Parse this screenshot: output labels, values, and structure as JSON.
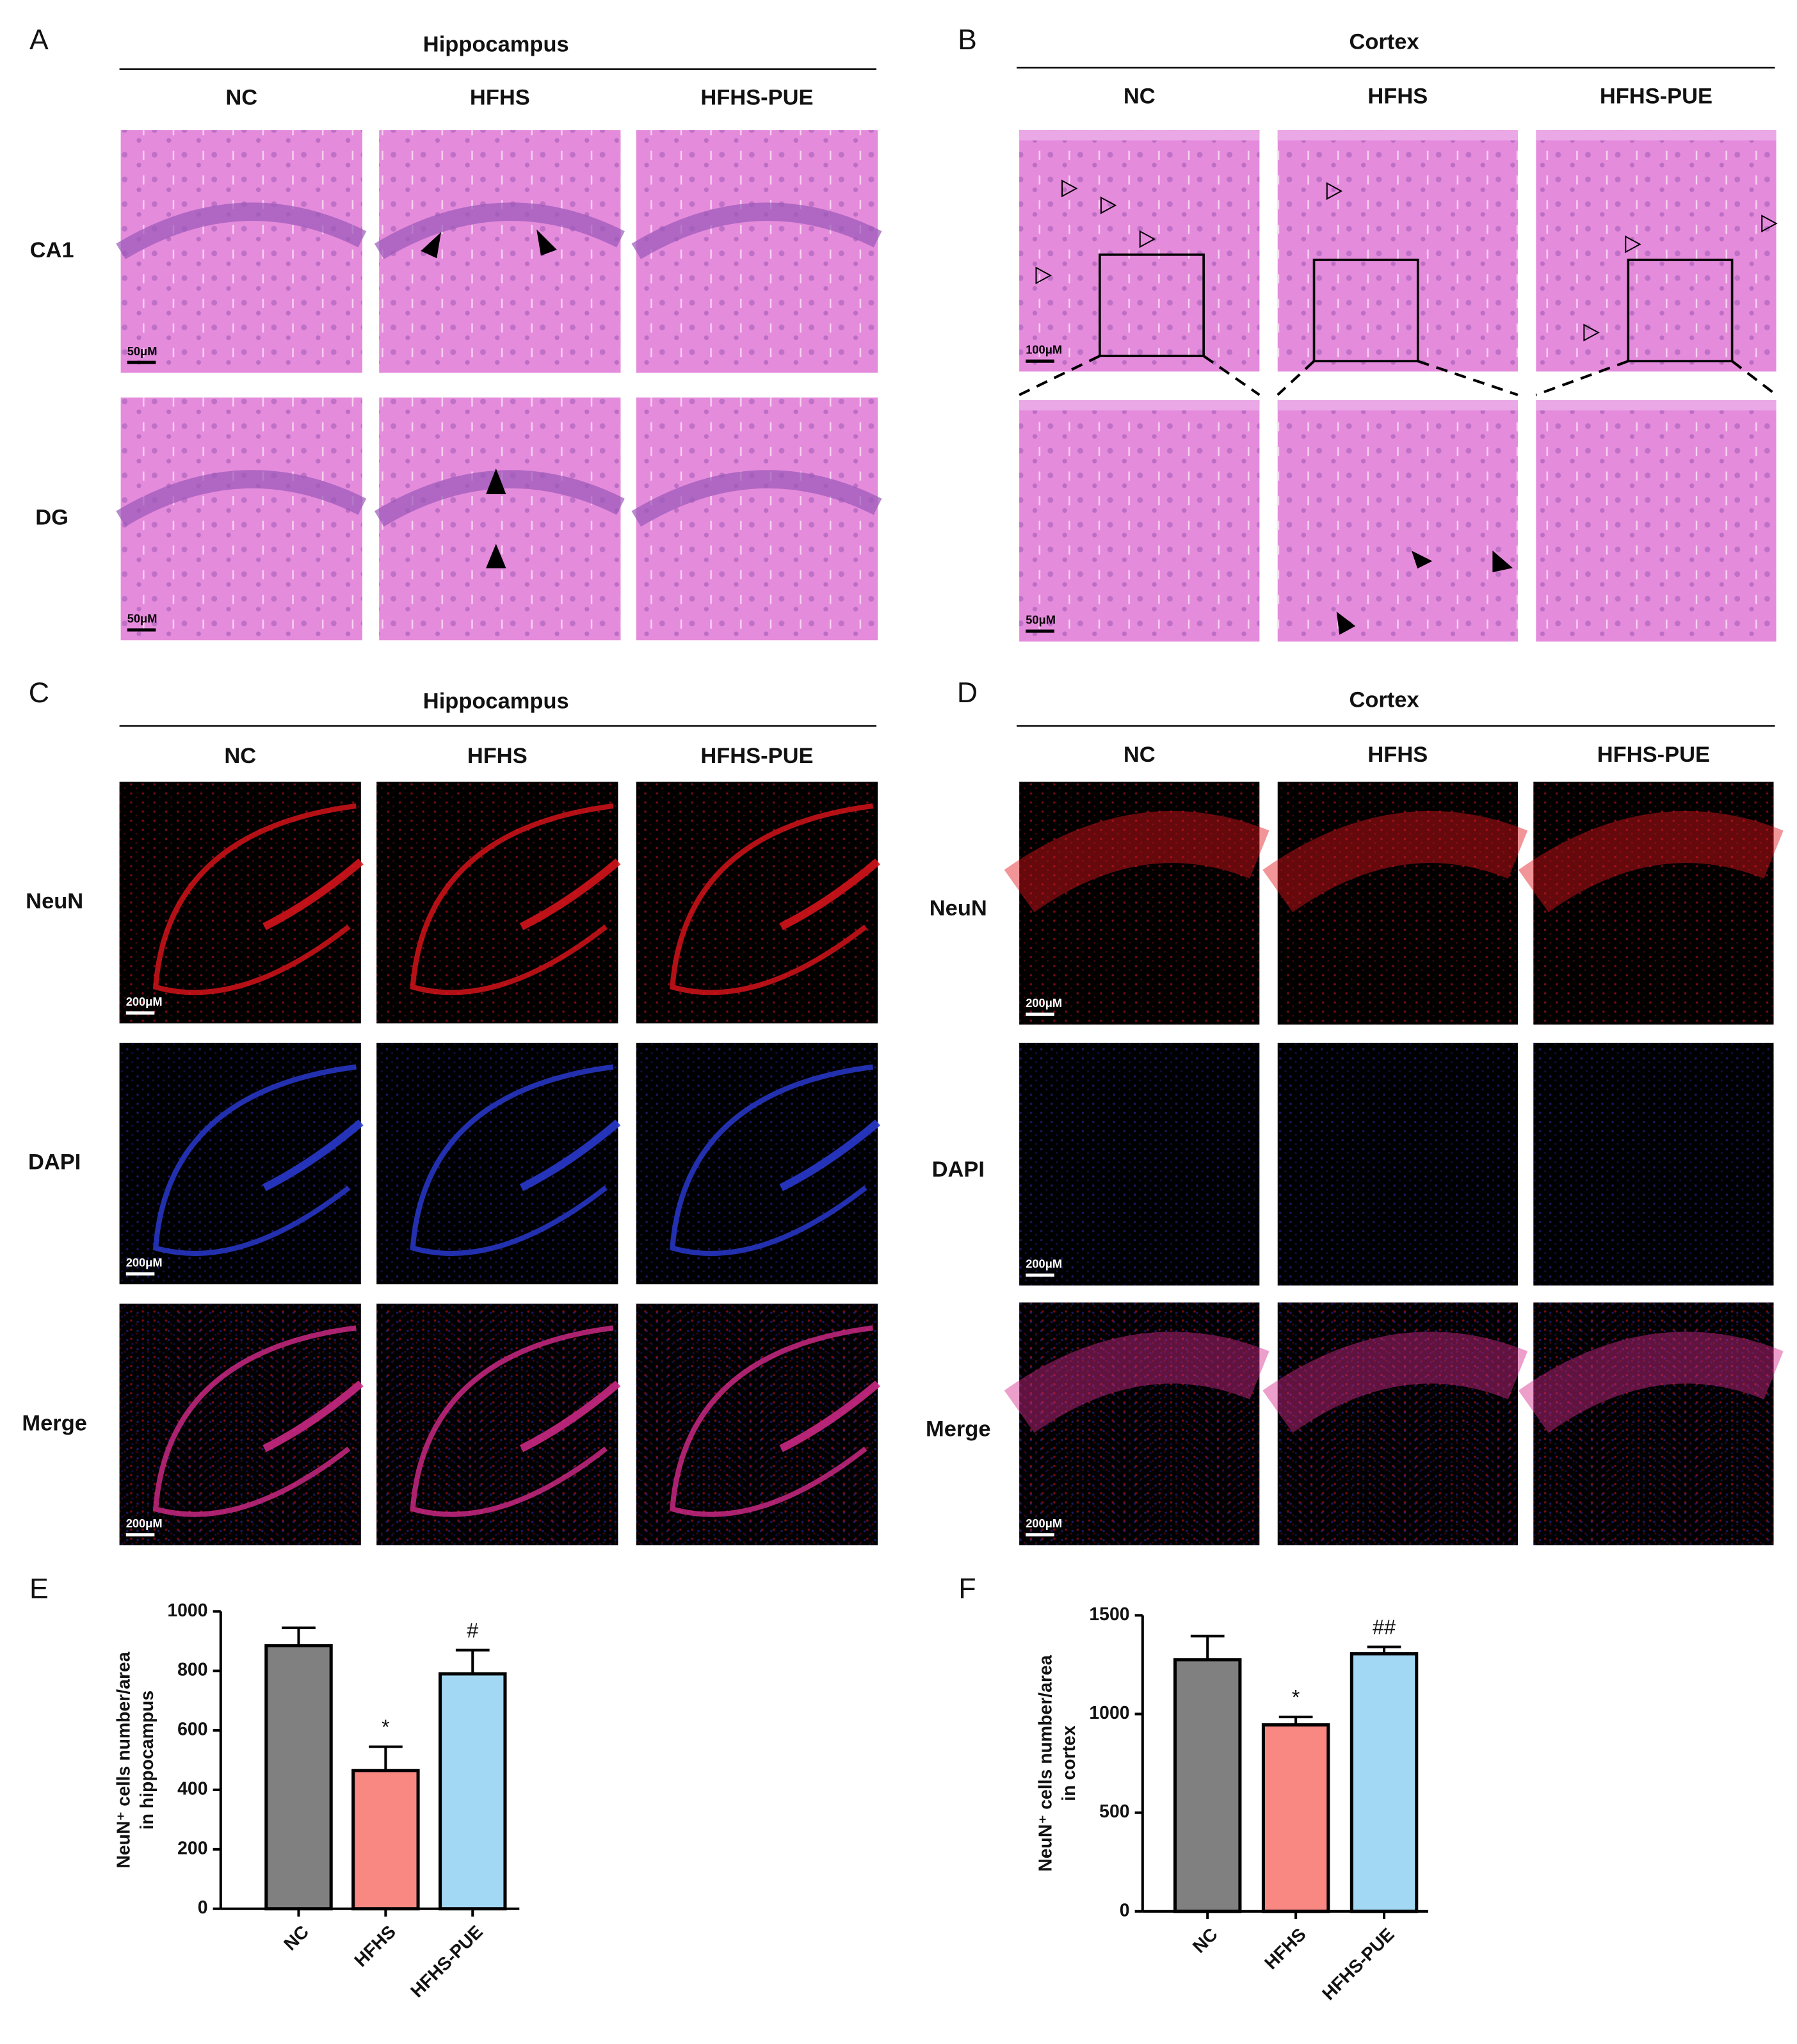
{
  "panels": [
    {
      "label": "A",
      "title": "Hippocampus",
      "columns": [
        "NC",
        "HFHS",
        "HFHS-PUE"
      ],
      "rows": [
        "CA1",
        "DG"
      ],
      "scale_bars": [
        "50μM",
        "50μM"
      ]
    },
    {
      "label": "B",
      "title": "Cortex",
      "columns": [
        "NC",
        "HFHS",
        "HFHS-PUE"
      ],
      "scale_bars": [
        "100μM",
        "50μM"
      ]
    },
    {
      "label": "C",
      "title": "Hippocampus",
      "columns": [
        "NC",
        "HFHS",
        "HFHS-PUE"
      ],
      "rows": [
        "NeuN",
        "DAPI",
        "Merge"
      ],
      "scale_bars": [
        "200μM",
        "200μM",
        "200μM"
      ]
    },
    {
      "label": "D",
      "title": "Cortex",
      "columns": [
        "NC",
        "HFHS",
        "HFHS-PUE"
      ],
      "rows": [
        "NeuN",
        "DAPI",
        "Merge"
      ],
      "scale_bars": [
        "200μM",
        "200μM",
        "200μM"
      ]
    }
  ],
  "chart_data": [
    {
      "type": "bar",
      "label": "E",
      "ylabel": [
        "NeuN⁺ cells number/area",
        "in hippocampus"
      ],
      "categories": [
        "NC",
        "HFHS",
        "HFHS-PUE"
      ],
      "values": [
        885,
        465,
        790
      ],
      "errors": [
        60,
        80,
        80
      ],
      "annotations": [
        null,
        "*",
        "#"
      ],
      "colors": [
        "#808080",
        "#f98782",
        "#a3d8f4"
      ],
      "ylim": [
        0,
        1000
      ],
      "yticks": [
        0,
        200,
        400,
        600,
        800,
        1000
      ]
    },
    {
      "type": "bar",
      "label": "F",
      "ylabel": [
        "NeuN⁺ cells number/area",
        "in cortex"
      ],
      "categories": [
        "NC",
        "HFHS",
        "HFHS-PUE"
      ],
      "values": [
        1275,
        945,
        1305
      ],
      "errors": [
        120,
        40,
        35
      ],
      "annotations": [
        null,
        "*",
        "##"
      ],
      "colors": [
        "#808080",
        "#f98782",
        "#a3d8f4"
      ],
      "ylim": [
        0,
        1500
      ],
      "yticks": [
        0,
        500,
        1000,
        1500
      ]
    }
  ]
}
